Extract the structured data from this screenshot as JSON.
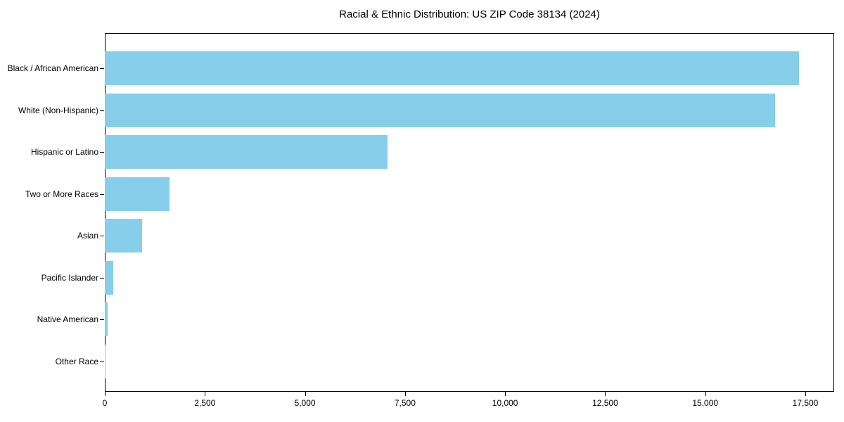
{
  "chart_data": {
    "type": "bar",
    "orientation": "horizontal",
    "title": "Racial & Ethnic Distribution: US ZIP Code 38134 (2024)",
    "categories": [
      "Black / African American",
      "White (Non-Hispanic)",
      "Hispanic or Latino",
      "Two or More Races",
      "Asian",
      "Pacific Islander",
      "Native American",
      "Other Race"
    ],
    "values": [
      17340,
      16740,
      7070,
      1620,
      930,
      210,
      65,
      10
    ],
    "xlabel": "",
    "ylabel": "",
    "xlim": [
      0,
      18220
    ],
    "x_ticks": [
      0,
      2500,
      5000,
      7500,
      10000,
      12500,
      15000,
      17500
    ],
    "x_tick_labels": [
      "0",
      "2,500",
      "5,000",
      "7,500",
      "10,000",
      "12,500",
      "15,000",
      "17,500"
    ],
    "bar_color": "#87CEEB",
    "spine_color": "#000000",
    "background_color": "#ffffff",
    "grid": false,
    "legend": null
  }
}
